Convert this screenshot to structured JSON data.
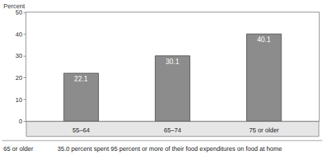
{
  "chart_data": {
    "type": "bar",
    "ylabel": "Percent",
    "categories": [
      "55–64",
      "65–74",
      "75 or older"
    ],
    "values": [
      22.1,
      30.1,
      40.1
    ],
    "color": "#8c8c8c",
    "ylim": [
      0,
      50
    ],
    "yticks": [
      0,
      10,
      20,
      30,
      40,
      50
    ],
    "grid": false,
    "data_labels": true,
    "footnote": {
      "label": "65 or older",
      "text": "35.0 percent spent 95 percent or more of their food expenditures on food at home"
    }
  }
}
